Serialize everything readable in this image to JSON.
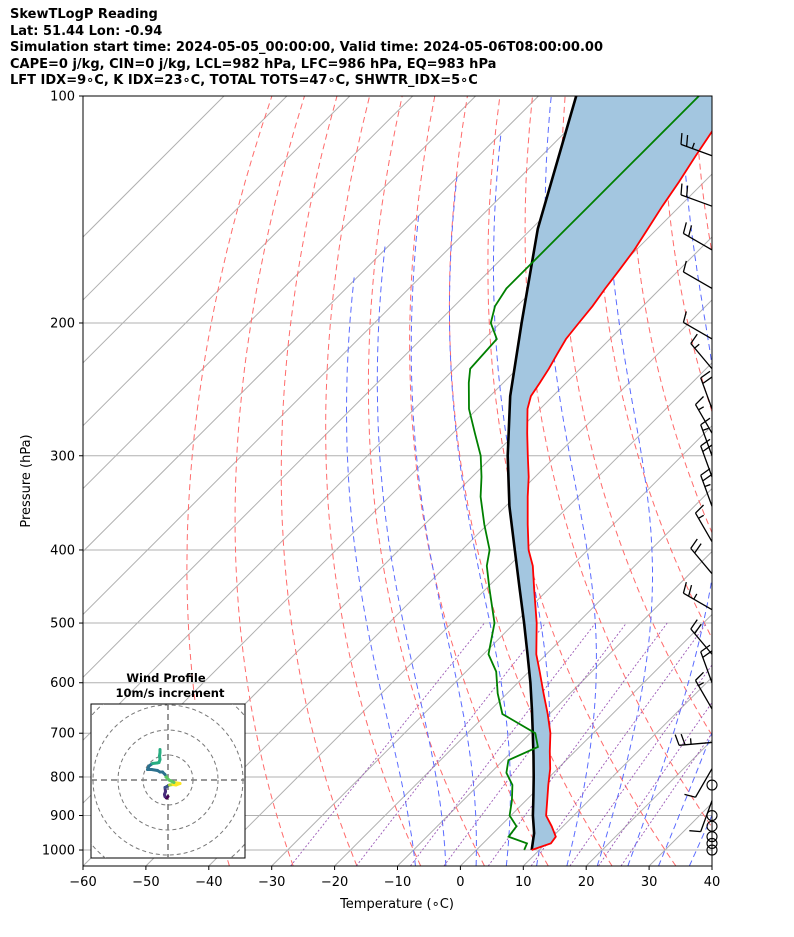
{
  "header": {
    "line1": "SkewTLogP Reading",
    "line2": "Lat: 51.44   Lon: -0.94",
    "line3": "Simulation start time: 2024-05-05_00:00:00, Valid time: 2024-05-06T08:00:00.00",
    "line4": "CAPE=0 j/kg, CIN=0 j/kg, LCL=982 hPa, LFC=986 hPa, EQ=983 hPa",
    "line5": "LFT IDX=9∘C, K IDX=23∘C, TOTAL TOTS=47∘C, SHWTR_IDX=5∘C"
  },
  "chart_data": {
    "type": "line",
    "xlabel": "Temperature (∘C)",
    "ylabel": "Pressure (hPa)",
    "xlim": [
      -60,
      40
    ],
    "ylim": [
      1050,
      100
    ],
    "y_scale": "log",
    "x_ticks": [
      "−60",
      "−50",
      "−40",
      "−30",
      "−20",
      "−10",
      "0",
      "10",
      "20",
      "30",
      "40"
    ],
    "x_tick_values": [
      -60,
      -50,
      -40,
      -30,
      -20,
      -10,
      0,
      10,
      20,
      30,
      40
    ],
    "y_ticks": [
      "100",
      "200",
      "300",
      "400",
      "500",
      "600",
      "700",
      "800",
      "900",
      "1000"
    ],
    "y_tick_values": [
      100,
      200,
      300,
      400,
      500,
      600,
      700,
      800,
      900,
      1000
    ],
    "grid": true,
    "skew": true,
    "series": [
      {
        "role": "temperature",
        "color": "#ff0000",
        "p": [
          1000,
          980,
          960,
          930,
          900,
          860,
          820,
          780,
          740,
          700,
          660,
          620,
          580,
          550,
          500,
          450,
          420,
          400,
          370,
          340,
          320,
          300,
          280,
          260,
          250,
          240,
          230,
          220,
          210,
          200,
          190,
          180,
          170,
          160,
          150,
          140,
          130,
          120,
          110,
          100
        ],
        "t": [
          8.8,
          10.8,
          10.5,
          8.2,
          5.6,
          3.4,
          1.1,
          -1.2,
          -4.0,
          -6.8,
          -10.3,
          -14.2,
          -18.3,
          -21.6,
          -26.5,
          -32.4,
          -36.2,
          -39.4,
          -43.6,
          -48.0,
          -51.0,
          -54.5,
          -58.2,
          -62.0,
          -63.5,
          -64.2,
          -65.0,
          -66.0,
          -67.0,
          -67.5,
          -68.0,
          -68.8,
          -69.5,
          -70.3,
          -71.5,
          -72.8,
          -74.0,
          -75.5,
          -77.0,
          -78.5
        ]
      },
      {
        "role": "dewpoint",
        "color": "#008000",
        "p": [
          1000,
          980,
          960,
          930,
          900,
          860,
          820,
          790,
          760,
          730,
          700,
          660,
          620,
          580,
          550,
          500,
          450,
          420,
          400,
          370,
          340,
          320,
          300,
          280,
          260,
          240,
          230,
          210,
          200,
          190,
          180,
          170,
          160,
          150,
          140,
          130,
          120,
          110,
          100
        ],
        "t": [
          7.6,
          7.0,
          3.0,
          2.6,
          -0.2,
          -2.2,
          -4.6,
          -7.5,
          -9.2,
          -6.6,
          -9.2,
          -17.5,
          -21.5,
          -25.2,
          -29.2,
          -33.2,
          -39.5,
          -43.5,
          -45.6,
          -50.5,
          -55.5,
          -58.5,
          -62.0,
          -66.5,
          -71.3,
          -75.5,
          -77.5,
          -78.0,
          -81.5,
          -83.5,
          -84.5,
          -84.5,
          -84.5,
          -84.5,
          -84.5,
          -84.5,
          -84.5,
          -84.5,
          -84.5
        ]
      },
      {
        "role": "parcel",
        "color": "#000000",
        "p": [
          1000,
          950,
          900,
          850,
          800,
          750,
          700,
          650,
          600,
          550,
          500,
          450,
          400,
          350,
          300,
          250,
          200,
          150,
          100
        ],
        "t": [
          8.8,
          6.5,
          3.5,
          0.6,
          -2.5,
          -5.9,
          -9.6,
          -13.6,
          -18.0,
          -23.0,
          -28.5,
          -34.7,
          -41.6,
          -49.4,
          -57.7,
          -66.8,
          -76.6,
          -89.0,
          -104.0
        ]
      }
    ],
    "wind_barbs": {
      "p": [
        1000,
        980,
        960,
        930,
        900,
        860,
        820,
        780,
        720,
        650,
        600,
        550,
        480,
        430,
        390,
        350,
        320,
        300,
        280,
        260,
        230,
        210,
        180,
        160,
        140,
        120
      ],
      "speed_kt": [
        0,
        0,
        0,
        0,
        0,
        10,
        0,
        10,
        25,
        15,
        20,
        20,
        25,
        20,
        15,
        25,
        20,
        15,
        15,
        20,
        15,
        10,
        10,
        20,
        20,
        25
      ]
    },
    "hodograph": {
      "title": "Wind Profile",
      "subtitle": "10m/s increment",
      "u": [
        0,
        -0.3,
        -0.6,
        -0.7,
        -0.5,
        -0.6,
        0.3,
        1.0,
        1.6,
        2.4,
        1.2,
        0.2,
        -0.4,
        -0.3,
        -0.6,
        -1.1,
        -1.6,
        -2.1,
        -3.3,
        -4.1,
        -3.8,
        -3.1,
        -2.2,
        -1.8,
        -1.6,
        -1.7,
        -1.6,
        -1.6
      ],
      "v": [
        -1.3,
        -1.6,
        -1.3,
        -0.9,
        -0.3,
        0.5,
        1.0,
        1.1,
        1.0,
        1.3,
        1.5,
        2.0,
        2.6,
        2.6,
        3.1,
        3.6,
        3.6,
        3.9,
        4.1,
        4.1,
        4.8,
        5.3,
        5.4,
        5.5,
        6.1,
        6.8,
        7.5,
        8.1
      ]
    }
  }
}
